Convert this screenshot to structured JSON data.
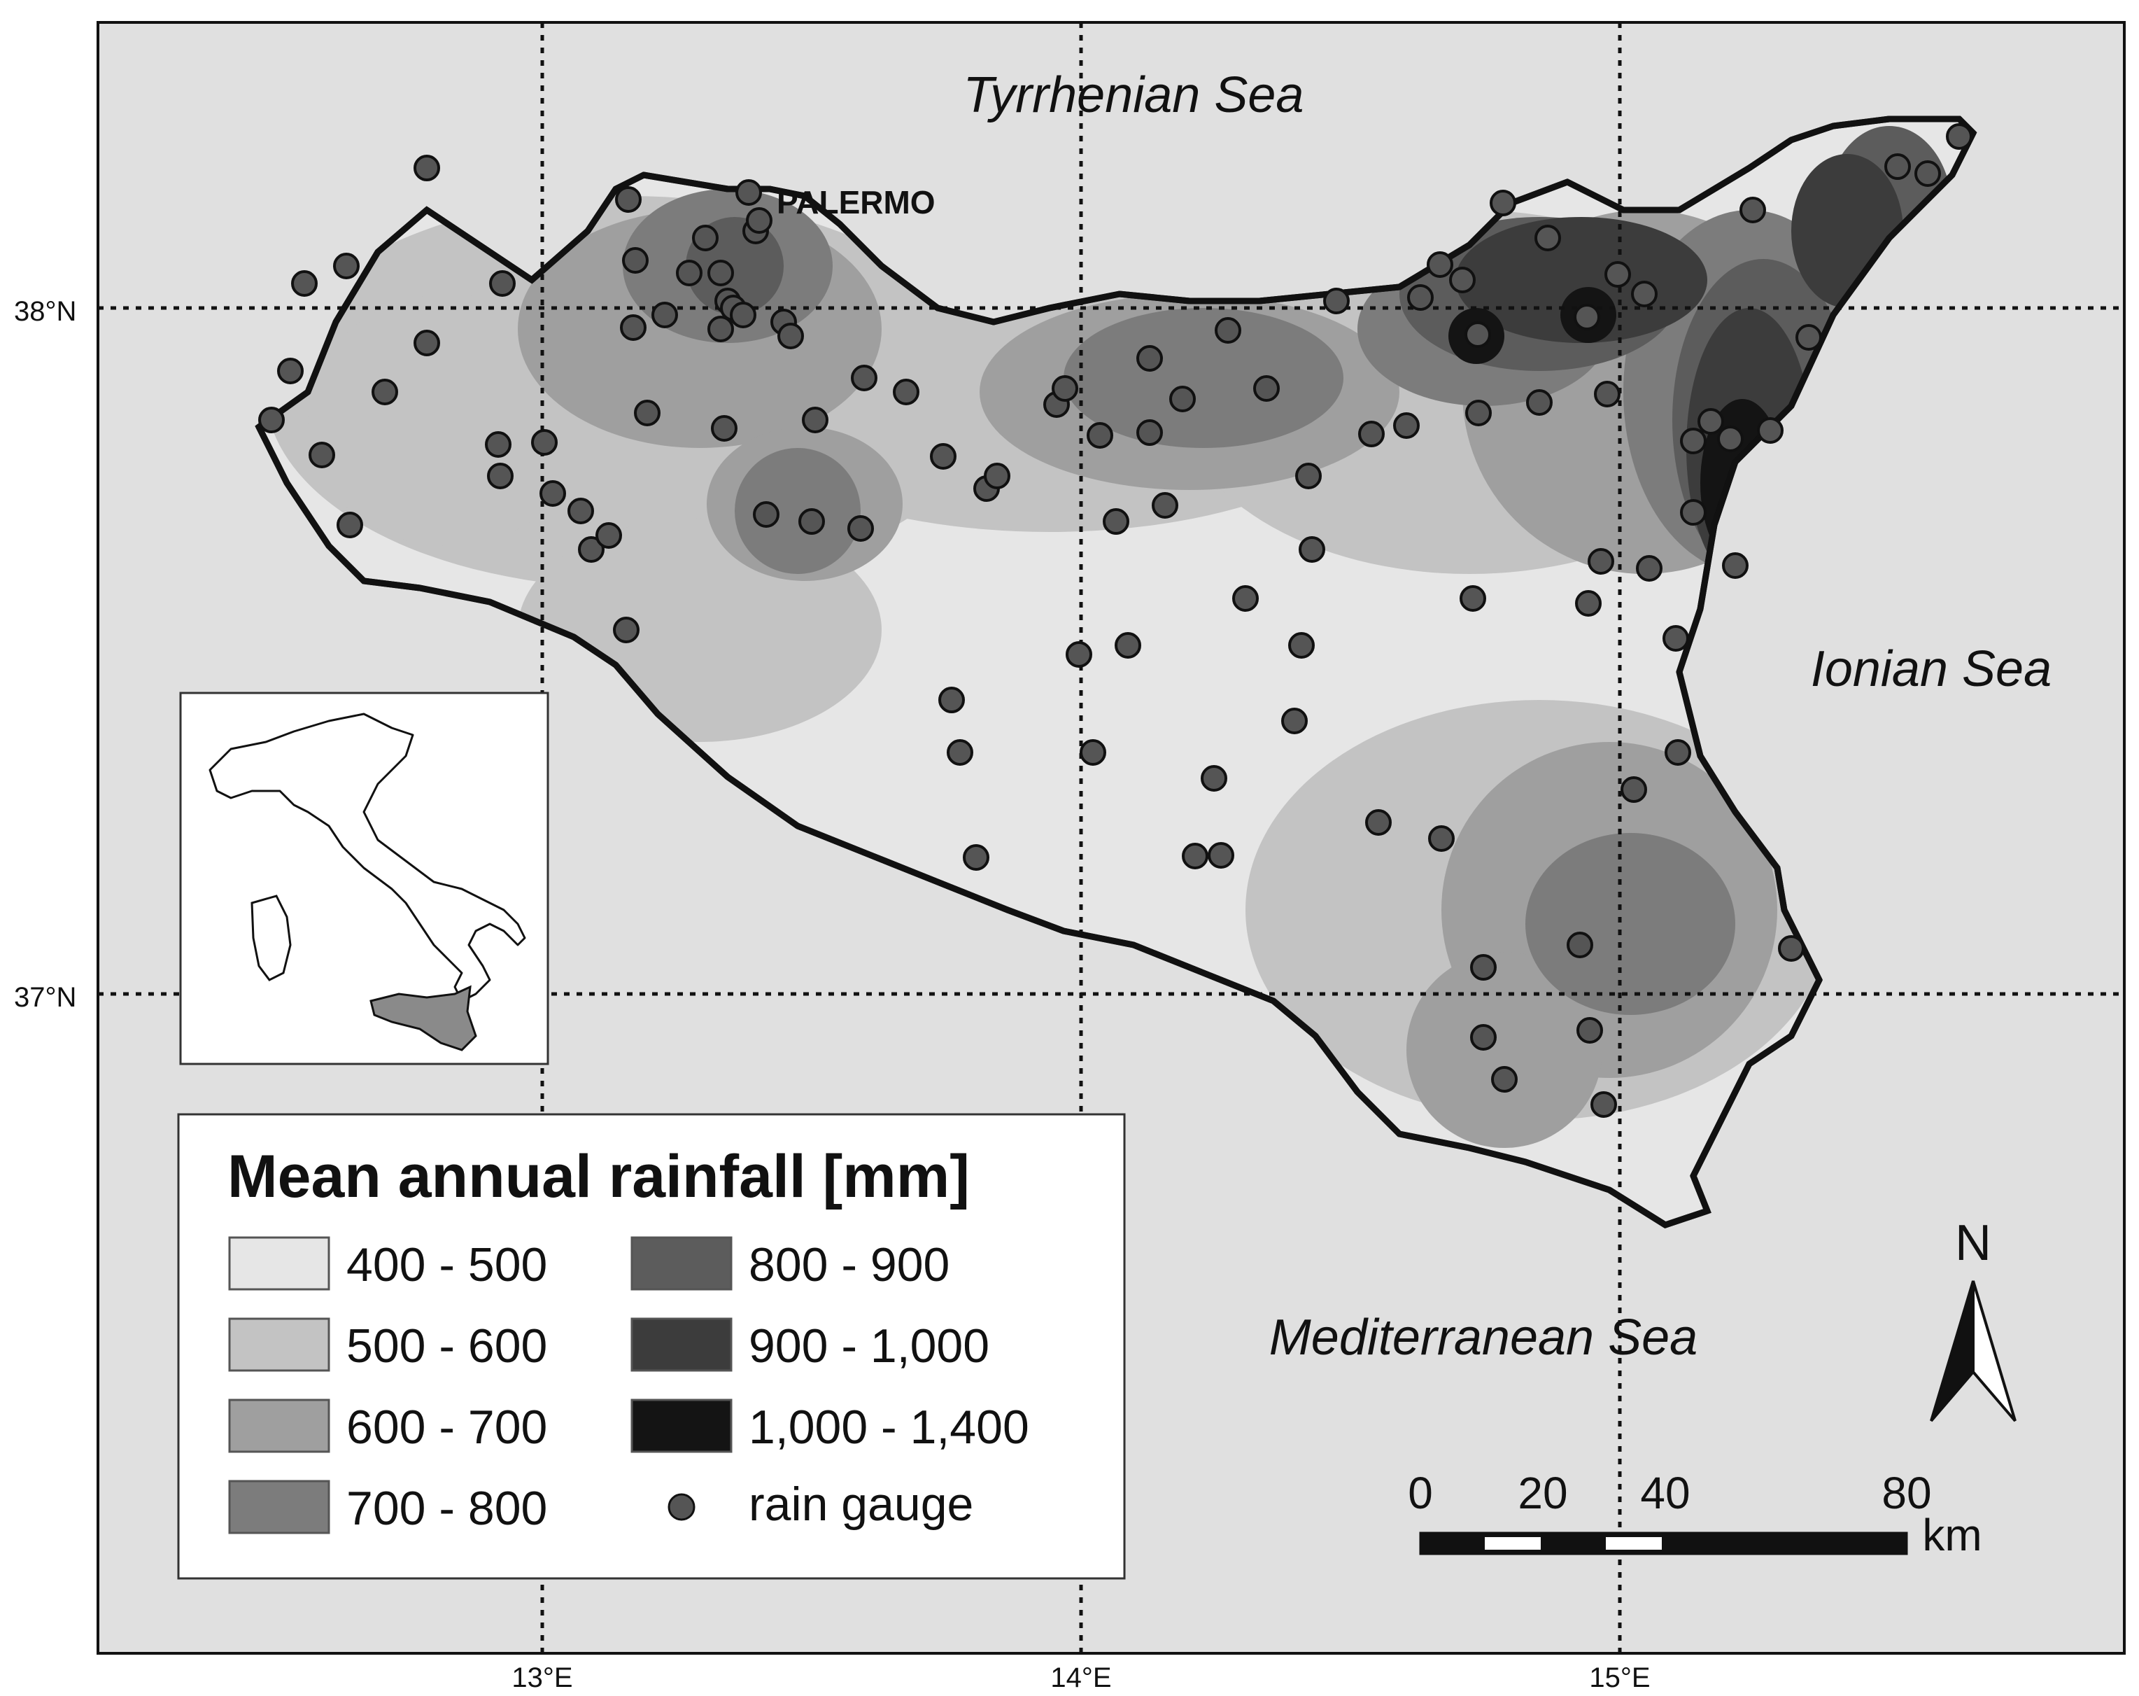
{
  "map": {
    "seas": {
      "north": "Tyrrhenian Sea",
      "east": "Ionian Sea",
      "south": "Mediterranean Sea"
    },
    "city": "PALERMO",
    "graticule": {
      "lat_labels": [
        "38°N",
        "37°N"
      ],
      "lon_labels": [
        "13°E",
        "14°E",
        "15°E"
      ]
    },
    "legend": {
      "title": "Mean annual rainfall [mm]",
      "classes": [
        {
          "label": "400 - 500",
          "color": "#e6e6e6"
        },
        {
          "label": "500 - 600",
          "color": "#c3c3c3"
        },
        {
          "label": "600 - 700",
          "color": "#9f9f9f"
        },
        {
          "label": "700 - 800",
          "color": "#7c7c7c"
        },
        {
          "label": "800 - 900",
          "color": "#5c5c5c"
        },
        {
          "label": "900 - 1,000",
          "color": "#3c3c3c"
        },
        {
          "label": "1,000 - 1,400",
          "color": "#141414"
        }
      ],
      "gauge_label": "rain gauge"
    },
    "north_arrow": "N",
    "scale_bar": {
      "ticks": [
        "0",
        "20",
        "40",
        "80"
      ],
      "unit": "km"
    },
    "colors": {
      "sea": "#e0e0e0",
      "gauge": "#555555",
      "inset_sicily": "#8a8a8a"
    }
  }
}
